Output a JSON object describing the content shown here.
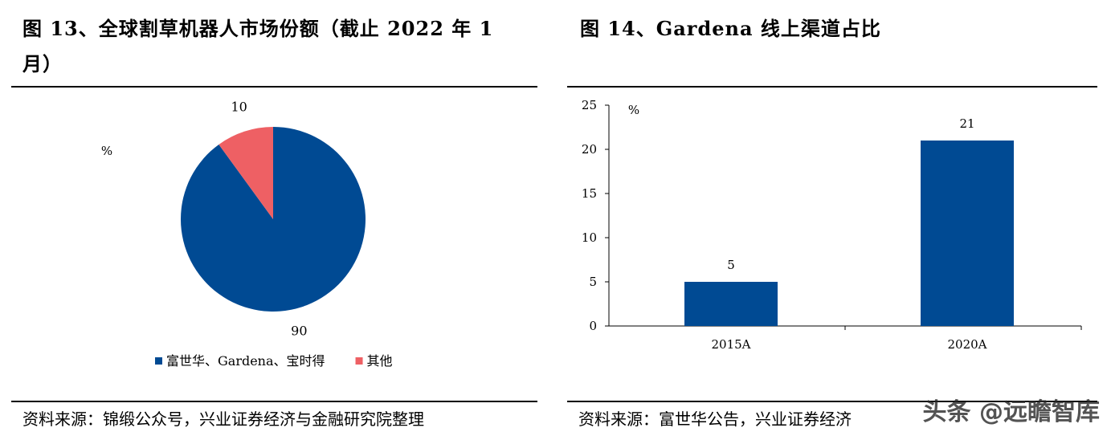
{
  "colors": {
    "blue": "#004A93",
    "red": "#EE6064",
    "rule": "#000000"
  },
  "left_figure": {
    "title": "图 13、全球割草机器人市场份额（截止 2022 年 1 月）",
    "source": "资料来源：锦缎公众号，兴业证券经济与金融研究院整理",
    "chart_data": {
      "type": "pie",
      "unit_label": "%",
      "slices": [
        {
          "name": "富世华、Gardena、宝时得",
          "value": 90,
          "label": "90",
          "color": "#004A93"
        },
        {
          "name": "其他",
          "value": 10,
          "label": "10",
          "color": "#EE6064"
        }
      ],
      "legend": [
        "富世华、Gardena、宝时得",
        "其他"
      ],
      "legend_position": "bottom"
    }
  },
  "right_figure": {
    "title": "图 14、Gardena 线上渠道占比",
    "source": "资料来源：富世华公告，兴业证券经济",
    "chart_data": {
      "type": "bar",
      "unit_label": "%",
      "categories": [
        "2015A",
        "2020A"
      ],
      "values": [
        5,
        21
      ],
      "data_labels": [
        "5",
        "21"
      ],
      "ylim": [
        0,
        25
      ],
      "yticks": [
        "0",
        "5",
        "10",
        "15",
        "20",
        "25"
      ],
      "grid": false,
      "color": "#004A93"
    }
  },
  "watermark": "头条 @远瞻智库"
}
